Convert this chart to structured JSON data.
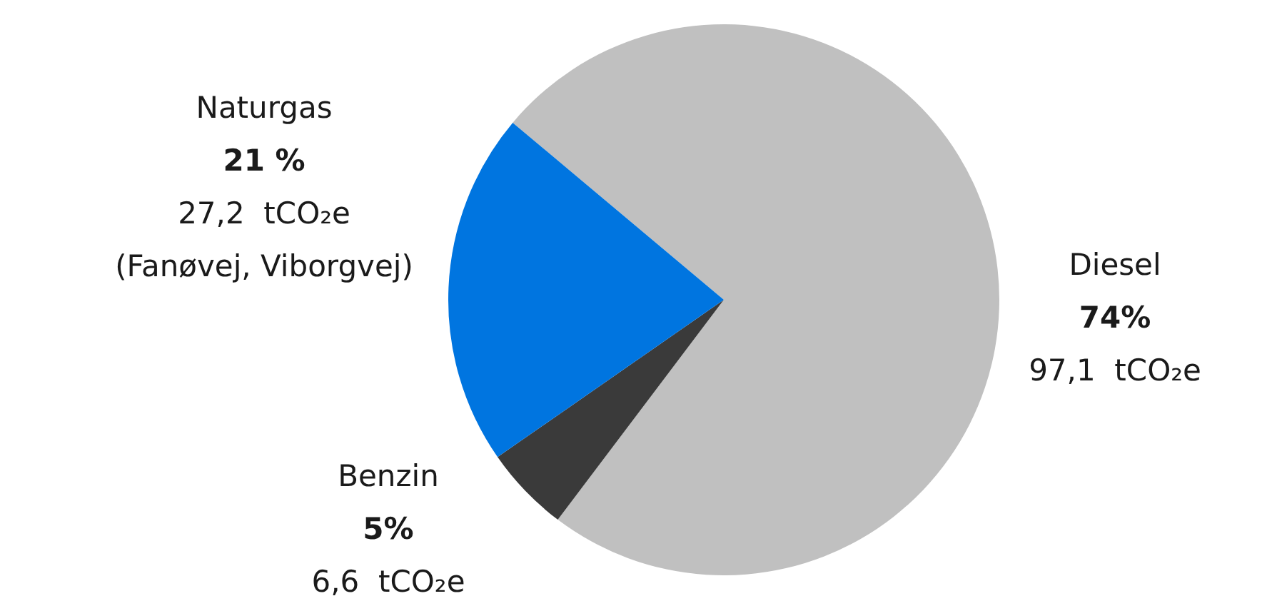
{
  "chart_data": {
    "type": "pie",
    "categories": [
      "Diesel",
      "Benzin",
      "Naturgas"
    ],
    "values": [
      97.1,
      6.6,
      27.2
    ],
    "colors": [
      "#c0c0c0",
      "#3a3a3a",
      "#0075e0"
    ],
    "value_labels": [
      "74%\n97,1  tCO₂e",
      "5%\n6,6  tCO₂e",
      "21 %\n27,2  tCO₂e\n(Fanøvej, Viborgvej)"
    ],
    "legend": false
  }
}
